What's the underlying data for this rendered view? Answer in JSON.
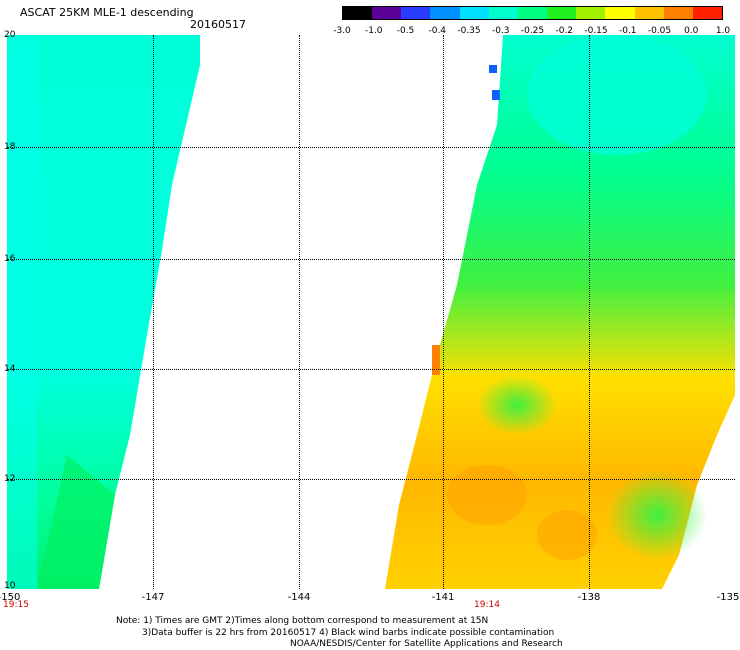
{
  "header": {
    "title": "ASCAT 25KM MLE-1 descending",
    "date": "20160517"
  },
  "colorbar": {
    "labels": [
      "-3.0",
      "-1.0",
      "-0.5",
      "-0.4",
      "-0.35",
      "-0.3",
      "-0.25",
      "-0.2",
      "-0.15",
      "-0.1",
      "-0.05",
      "0.0",
      "1.0"
    ],
    "colors": [
      "#000000",
      "#5b0098",
      "#2a3cff",
      "#0090ff",
      "#00e0ff",
      "#00ffcc",
      "#00ff80",
      "#20f020",
      "#a0f000",
      "#ffff00",
      "#ffc000",
      "#ff8000",
      "#ff2000"
    ]
  },
  "map": {
    "lat_labels": [
      "20",
      "18",
      "16",
      "14",
      "12",
      "10"
    ],
    "lon_labels": [
      "-150",
      "-147",
      "-144",
      "-141",
      "-138",
      "-135"
    ],
    "times": [
      "19:15",
      "19:14"
    ],
    "lat_range": [
      10,
      20
    ],
    "lon_range": [
      -150,
      -135
    ]
  },
  "notes": [
    "Note: 1) Times are GMT 2)Times along bottom correspond to measurement at 15N",
    "3)Data buffer is 22 hrs from 20160517 4) Black wind barbs indicate possible contamination",
    "NOAA/NESDIS/Center for Satellite Applications and Research"
  ]
}
